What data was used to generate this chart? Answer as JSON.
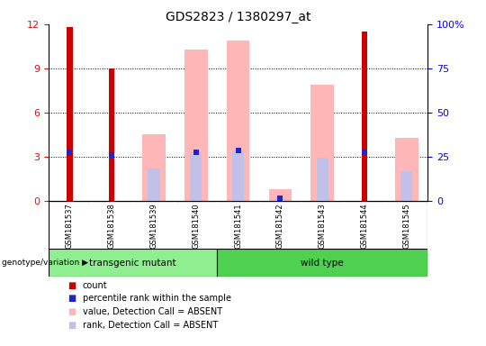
{
  "title": "GDS2823 / 1380297_at",
  "samples": [
    "GSM181537",
    "GSM181538",
    "GSM181539",
    "GSM181540",
    "GSM181541",
    "GSM181542",
    "GSM181543",
    "GSM181544",
    "GSM181545"
  ],
  "groups": [
    "transgenic mutant",
    "transgenic mutant",
    "transgenic mutant",
    "transgenic mutant",
    "wild type",
    "wild type",
    "wild type",
    "wild type",
    "wild type"
  ],
  "count": [
    11.8,
    9.0,
    0,
    0,
    0,
    0,
    0,
    11.5,
    0
  ],
  "percentile_rank": [
    3.3,
    3.1,
    0,
    3.3,
    3.4,
    0.15,
    0,
    3.3,
    0
  ],
  "value_absent": [
    0,
    0,
    4.5,
    10.3,
    10.9,
    0.8,
    7.9,
    0,
    4.3
  ],
  "rank_absent": [
    0,
    0,
    2.2,
    3.3,
    3.4,
    0.2,
    2.9,
    0,
    2.0
  ],
  "ylim_left": [
    0,
    12
  ],
  "ylim_right": [
    0,
    100
  ],
  "yticks_left": [
    0,
    3,
    6,
    9,
    12
  ],
  "yticks_right": [
    0,
    25,
    50,
    75,
    100
  ],
  "ytick_right_labels": [
    "0",
    "25",
    "50",
    "75",
    "100%"
  ],
  "count_color": "#CC0000",
  "percentile_color": "#2222CC",
  "value_absent_color": "#FFB6B6",
  "rank_absent_color": "#C0C0E8",
  "bg_group_row": "#C8C8C8",
  "group_color_transgenic": "#90EE90",
  "group_color_wild": "#50D050",
  "legend_items": [
    [
      "#CC0000",
      "count"
    ],
    [
      "#2222CC",
      "percentile rank within the sample"
    ],
    [
      "#FFB6B6",
      "value, Detection Call = ABSENT"
    ],
    [
      "#C0C0E8",
      "rank, Detection Call = ABSENT"
    ]
  ]
}
